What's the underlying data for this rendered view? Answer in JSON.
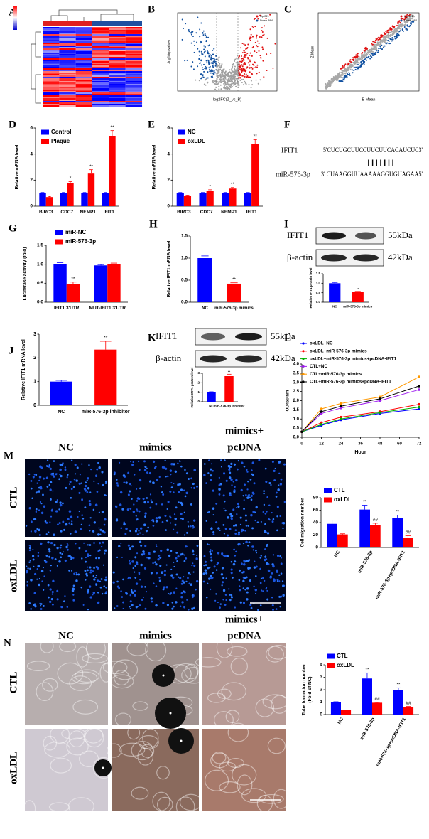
{
  "panel_labels": [
    "A",
    "B",
    "C",
    "D",
    "E",
    "F",
    "G",
    "H",
    "I",
    "J",
    "K",
    "L",
    "M",
    "N"
  ],
  "volcano": {
    "xlabel": "log2FC(Z_vs_B)",
    "ylabel": "-log10(p-value)",
    "legend": [
      "Up 221",
      "Down 864"
    ]
  },
  "scatter": {
    "xlabel": "B Mean",
    "ylabel": "Z Mean",
    "legend": [
      "Up 221",
      "Down 864"
    ]
  },
  "alignment": {
    "gene": "IFIT1",
    "gene_seq": "5'CUCUGCUUCCUUCUUCACAUCUC3'",
    "pairing": "|||||||",
    "mirna": "miR-576-3p",
    "mirna_seq": "3' CUAAGGUUAAAAAGGUGUAGAA5'"
  },
  "blots": [
    {
      "rows": [
        {
          "protein": "IFIT1",
          "size": "55kDa"
        },
        {
          "protein": "β-actin",
          "size": "42kDa"
        }
      ]
    },
    {
      "rows": [
        {
          "protein": "IFIT1",
          "size": "55kDa"
        },
        {
          "protein": "β-actin",
          "size": "42kDa"
        }
      ]
    }
  ],
  "migration_images": {
    "columns": [
      [
        "NC"
      ],
      [
        "mimics"
      ],
      [
        "mimics+",
        "pcDNA"
      ]
    ],
    "rows": [
      "CTL",
      "oxLDL"
    ]
  },
  "tube_images": {
    "columns": [
      [
        "NC"
      ],
      [
        "mimics"
      ],
      [
        "mimics+",
        "pcDNA"
      ]
    ],
    "rows": [
      "CTL",
      "oxLDL"
    ]
  },
  "chart_data": [
    {
      "type": "bar",
      "ylabel": "Relative mRNA level",
      "categories": [
        "BIRC3",
        "CDC7",
        "NEMP1",
        "IFIT1"
      ],
      "series": [
        {
          "name": "Control",
          "color": "#0000ff",
          "values": [
            1,
            1,
            1,
            1
          ],
          "errors": [
            0.05,
            0.05,
            0.05,
            0.05
          ]
        },
        {
          "name": "Plaque",
          "color": "#ff0000",
          "values": [
            0.7,
            1.8,
            2.5,
            5.4
          ],
          "errors": [
            0.05,
            0.08,
            0.3,
            0.4
          ],
          "significance": [
            null,
            "*",
            "**",
            "**"
          ]
        }
      ],
      "ylim": [
        0,
        6
      ],
      "yticks": [
        0,
        2,
        4,
        6
      ],
      "legend": "top-left"
    },
    {
      "type": "bar",
      "ylabel": "Relative mRNA level",
      "categories": [
        "BIRC3",
        "CDC7",
        "NEMP1",
        "IFIT1"
      ],
      "series": [
        {
          "name": "NC",
          "color": "#0000ff",
          "values": [
            1,
            1,
            1,
            1
          ],
          "errors": [
            0.05,
            0.05,
            0.05,
            0.05
          ]
        },
        {
          "name": "oxLDL",
          "color": "#ff0000",
          "values": [
            0.8,
            1.2,
            1.35,
            4.8
          ],
          "errors": [
            0.05,
            0.06,
            0.08,
            0.3
          ],
          "significance": [
            null,
            "*",
            "**",
            "**"
          ]
        }
      ],
      "ylim": [
        0,
        6
      ],
      "yticks": [
        0,
        2,
        4,
        6
      ],
      "legend": "top-left"
    },
    {
      "type": "bar",
      "ylabel": "Luciferase activity (fold)",
      "categories": [
        "IFIT1 3'UTR",
        "MUT-IFIT1 3'UTR"
      ],
      "series": [
        {
          "name": "miR-NC",
          "color": "#0000ff",
          "values": [
            1.0,
            0.97
          ],
          "errors": [
            0.04,
            0.02
          ]
        },
        {
          "name": "miR-576-3p",
          "color": "#ff0000",
          "values": [
            0.48,
            1.0
          ],
          "errors": [
            0.05,
            0.03
          ],
          "significance": [
            "**",
            null
          ]
        }
      ],
      "ylim": [
        0,
        1.5
      ],
      "yticks": [
        {
          "value": 0,
          "label": "0.0"
        },
        0.5,
        {
          "value": 1,
          "label": "1.0"
        },
        1.5
      ],
      "legend": "top-left"
    },
    {
      "type": "bar",
      "ylabel": "Relative IFIT1 mRNA level",
      "categories": [
        "NC",
        "miR-576-3p mimics"
      ],
      "series": [
        {
          "colors": [
            "#0000ff",
            "#ff0000"
          ],
          "values": [
            1.0,
            0.42
          ],
          "errors": [
            0.05,
            0.02
          ],
          "significance": [
            null,
            "**"
          ]
        }
      ],
      "ylim": [
        0,
        1.5
      ],
      "yticks": [
        {
          "value": 0,
          "label": "0.0"
        },
        0.5,
        {
          "value": 1,
          "label": "1.0"
        },
        1.5
      ]
    },
    {
      "type": "bar",
      "ylabel": "Relative IFIT1 protein level",
      "categories": [
        "NC",
        "miR-576-3p mimics"
      ],
      "series": [
        {
          "colors": [
            "#0000ff",
            "#ff0000"
          ],
          "values": [
            1.0,
            0.55
          ],
          "errors": [
            0.04,
            0.02
          ],
          "significance": [
            null,
            "**"
          ]
        }
      ],
      "ylim": [
        0,
        1.5
      ],
      "yticks": [
        {
          "value": 0,
          "label": "0.0"
        },
        0.5,
        {
          "value": 1,
          "label": "1.0"
        },
        1.5
      ]
    },
    {
      "type": "bar",
      "ylabel": "Relative IFIT1 mRNA level",
      "categories": [
        "NC",
        "miR-576-3p inhibitor"
      ],
      "series": [
        {
          "colors": [
            "#0000ff",
            "#ff0000"
          ],
          "values": [
            1.0,
            2.35
          ],
          "errors": [
            0.05,
            0.35
          ],
          "significance": [
            null,
            "**"
          ]
        }
      ],
      "ylim": [
        0,
        3
      ],
      "yticks": [
        0,
        1,
        2,
        3
      ]
    },
    {
      "type": "bar",
      "ylabel": "Relative IFIT1 protein level",
      "categories": [
        "NC",
        "miR-576-3p inhibitor"
      ],
      "series": [
        {
          "colors": [
            "#0000ff",
            "#ff0000"
          ],
          "values": [
            1.0,
            2.7
          ],
          "errors": [
            0.05,
            0.2
          ],
          "significance": [
            null,
            "**"
          ]
        }
      ],
      "ylim": [
        0,
        3
      ],
      "yticks": [
        0,
        1,
        2,
        3
      ]
    },
    {
      "type": "line",
      "xlabel": "Hour",
      "ylabel": "OD450 nm",
      "x": [
        0,
        12,
        24,
        48,
        72
      ],
      "series": [
        {
          "name": "oxLDL+NC",
          "color": "#0000ff",
          "values": [
            0.3,
            0.65,
            0.95,
            1.3,
            1.55
          ]
        },
        {
          "name": "oxLDL+miR-576-3p mimics",
          "color": "#ff0000",
          "values": [
            0.3,
            0.8,
            1.1,
            1.4,
            1.8
          ]
        },
        {
          "name": "oxLDL+miR-576-3p mimics+pcDNA-IFIT1",
          "color": "#00b000",
          "values": [
            0.3,
            0.7,
            1.0,
            1.35,
            1.65
          ]
        },
        {
          "name": "CTL+NC",
          "color": "#a020f0",
          "values": [
            0.3,
            1.3,
            1.6,
            2.0,
            2.6
          ]
        },
        {
          "name": "CTL+miR-576-3p mimics",
          "color": "#ff9900",
          "values": [
            0.3,
            1.55,
            1.85,
            2.2,
            3.3
          ]
        },
        {
          "name": "CTL+miR-576-3p mimics+pcDNA-IFIT1",
          "color": "#000000",
          "values": [
            0.3,
            1.4,
            1.7,
            2.1,
            2.8
          ]
        }
      ],
      "xlim": [
        0,
        72
      ],
      "xticks": [
        0,
        12,
        24,
        36,
        48,
        60,
        72
      ],
      "ylim": [
        0,
        4
      ],
      "yticks": [
        {
          "value": 0,
          "label": "0.0"
        },
        0.5,
        {
          "value": 1,
          "label": "1.0"
        },
        1.5,
        {
          "value": 2,
          "label": "2.0"
        },
        2.5,
        {
          "value": 3,
          "label": "3.0"
        },
        3.5,
        {
          "value": 4,
          "label": "4.0"
        }
      ],
      "legend": "top-left"
    },
    {
      "type": "bar",
      "ylabel": "Cell migration number",
      "categories": [
        "NC",
        "miR-576-3p",
        "miR-576-3p+pcDNA-IFIT1"
      ],
      "series": [
        {
          "name": "CTL",
          "color": "#0000ff",
          "values": [
            38,
            61,
            48
          ],
          "errors": [
            6,
            7,
            4
          ],
          "significance": [
            null,
            "**",
            "**"
          ]
        },
        {
          "name": "oxLDL",
          "color": "#ff0000",
          "values": [
            21,
            36,
            16
          ],
          "errors": [
            1,
            3,
            3
          ],
          "significance": [
            null,
            "##",
            "##"
          ]
        }
      ],
      "ylim": [
        0,
        80
      ],
      "yticks": [
        0,
        20,
        40,
        60,
        80
      ],
      "legend": "top-left"
    },
    {
      "type": "bar",
      "ylabel": [
        "Tube formation number",
        "(Fold of NC)"
      ],
      "categories": [
        "NC",
        "miR-576-3p",
        "miR-576-3p+pcDNA-IFIT1"
      ],
      "series": [
        {
          "name": "CTL",
          "color": "#0000ff",
          "values": [
            1.0,
            2.9,
            1.95
          ],
          "errors": [
            0.03,
            0.45,
            0.2
          ],
          "significance": [
            null,
            "**",
            "**"
          ]
        },
        {
          "name": "oxLDL",
          "color": "#ff0000",
          "values": [
            0.35,
            0.95,
            0.62
          ],
          "errors": [
            0.02,
            0.03,
            0.03
          ],
          "significance": [
            null,
            "##",
            "##"
          ]
        }
      ],
      "ylim": [
        0,
        4
      ],
      "yticks": [
        0,
        1,
        2,
        3,
        4
      ],
      "legend": "top-left"
    }
  ]
}
